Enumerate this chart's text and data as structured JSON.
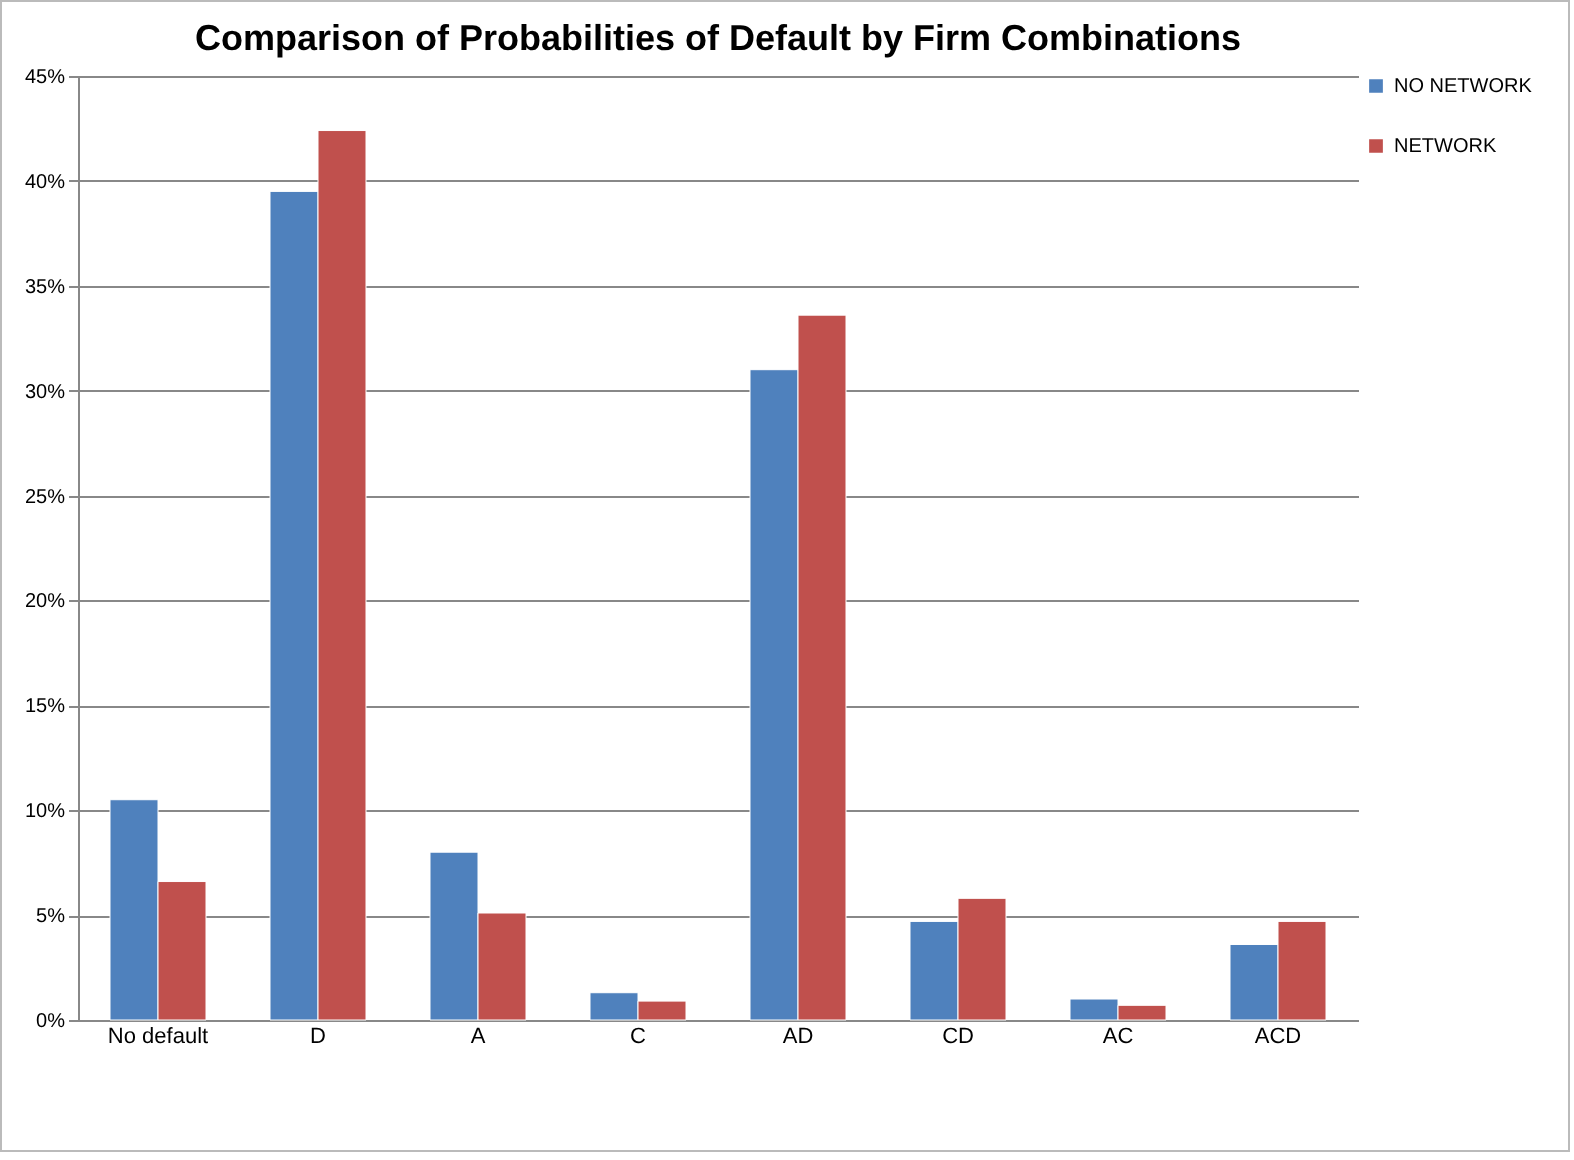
{
  "chart_data": {
    "type": "bar",
    "title": "Comparison of Probabilities of Default by Firm Combinations",
    "categories": [
      "No default",
      "D",
      "A",
      "C",
      "AD",
      "CD",
      "AC",
      "ACD"
    ],
    "series": [
      {
        "name": "NO NETWORK",
        "color": "#4f81bd",
        "values": [
          10.5,
          39.5,
          8.0,
          1.3,
          31.0,
          4.7,
          1.0,
          3.6
        ]
      },
      {
        "name": "NETWORK",
        "color": "#c0504d",
        "values": [
          6.6,
          42.4,
          5.1,
          0.9,
          33.6,
          5.8,
          0.7,
          4.7
        ]
      }
    ],
    "ylim": [
      0,
      45
    ],
    "yticks": [
      {
        "value": 0,
        "label": "0%"
      },
      {
        "value": 5,
        "label": "5%"
      },
      {
        "value": 10,
        "label": "10%"
      },
      {
        "value": 15,
        "label": "15%"
      },
      {
        "value": 20,
        "label": "20%"
      },
      {
        "value": 25,
        "label": "25%"
      },
      {
        "value": 30,
        "label": "30%"
      },
      {
        "value": 35,
        "label": "35%"
      },
      {
        "value": 40,
        "label": "40%"
      },
      {
        "value": 45,
        "label": "45%"
      }
    ],
    "grid": "y",
    "legend": "right"
  }
}
